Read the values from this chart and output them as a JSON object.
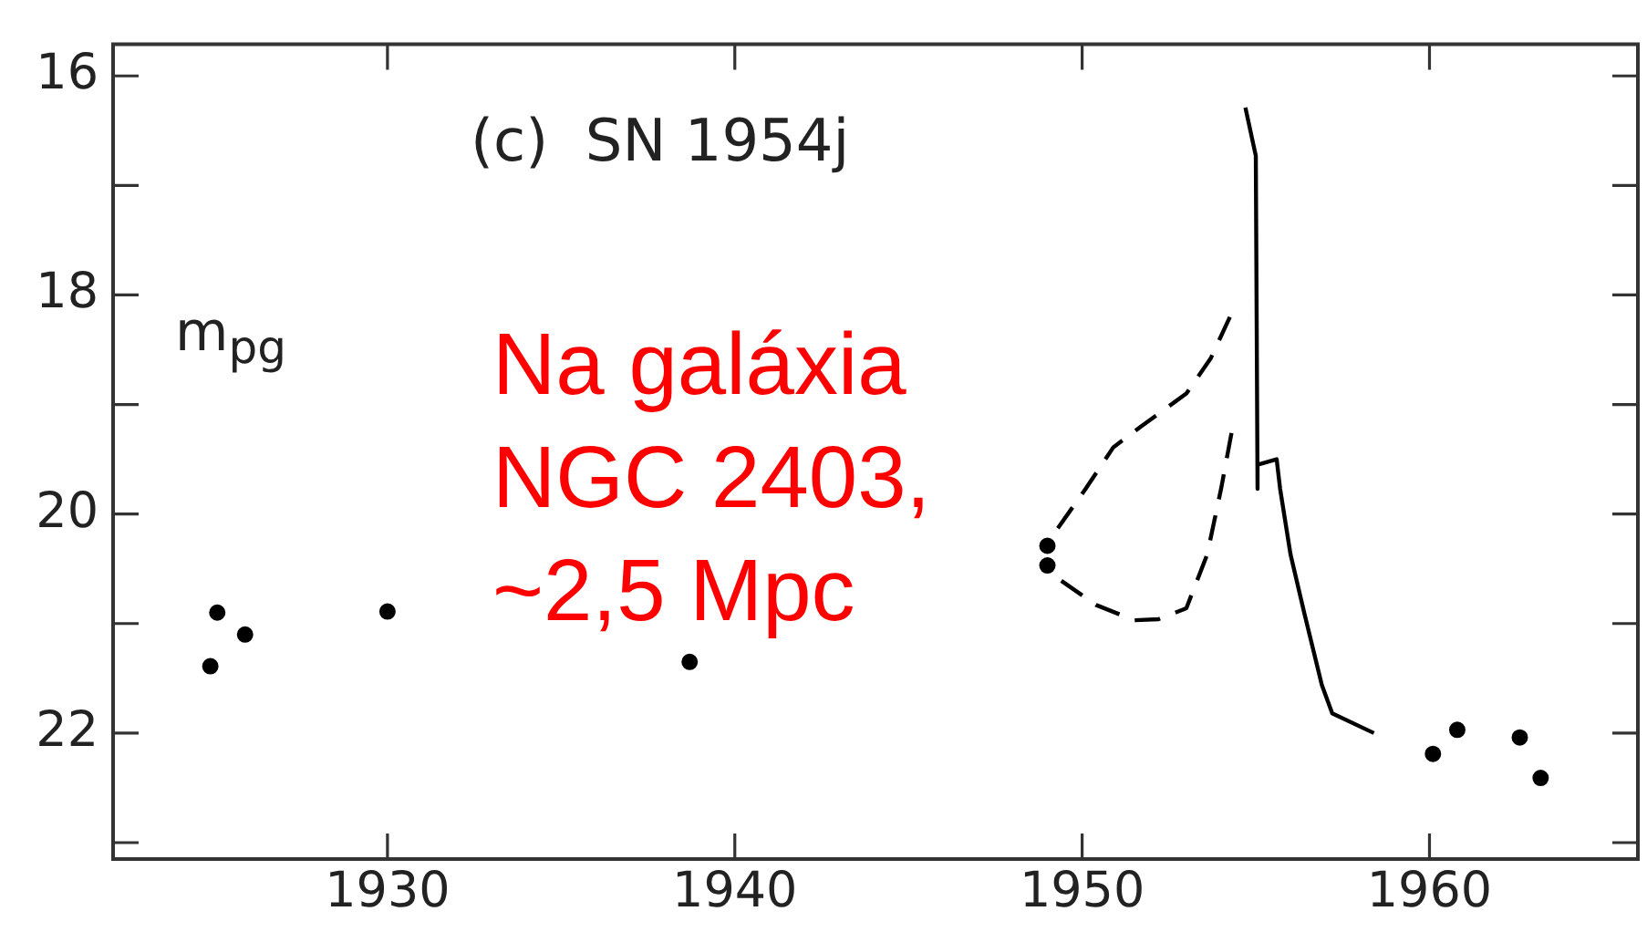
{
  "chart_data": {
    "type": "scatter",
    "title": "(c)  SN 1954j",
    "ylabel": "m$_{pg}$",
    "annotations": [
      "Na galáxia\nNGC 2403,\n~2,5 Mpc"
    ],
    "xlim": [
      1922.1,
      1966.0
    ],
    "xticks": [
      1930,
      1940,
      1950,
      1960
    ],
    "ylim": [
      23.15,
      15.71
    ],
    "yticks": [
      16,
      {
        "value": 17,
        "label": null
      },
      18,
      {
        "value": 19,
        "label": null
      },
      20,
      {
        "value": 21,
        "label": null
      },
      22,
      {
        "value": 23,
        "label": null
      }
    ],
    "grid": false,
    "legend": false,
    "series": [
      {
        "type": "scatter",
        "color": "#000000",
        "marker": "circle",
        "x": [
          1924.9,
          1925.1,
          1925.9,
          1930.0,
          1938.7,
          1949.0,
          1949.0,
          1960.1,
          1960.8,
          1962.6,
          1963.2
        ],
        "values": [
          21.39,
          20.9,
          21.1,
          20.89,
          21.35,
          20.29,
          20.47,
          22.19,
          21.97,
          22.04,
          22.41
        ]
      },
      {
        "type": "line",
        "color": "#000000",
        "marker": "none",
        "line_style": "solid",
        "x": [
          1954.7,
          1955.0,
          1955.05,
          1955.05,
          1955.6,
          1955.7,
          1956.0,
          1956.4,
          1956.9,
          1957.2,
          1958.4
        ],
        "values": [
          16.29,
          16.73,
          19.77,
          19.55,
          19.5,
          19.77,
          20.37,
          20.91,
          21.56,
          21.82,
          22.0
        ]
      },
      {
        "type": "line",
        "color": "#000000",
        "marker": "none",
        "line_style": "dashed",
        "x": [
          1949.3,
          1950.1,
          1950.9,
          1951.7,
          1953.0,
          1953.7,
          1954.3
        ],
        "values": [
          20.13,
          19.77,
          19.39,
          19.2,
          18.9,
          18.58,
          18.17
        ]
      },
      {
        "type": "line",
        "color": "#000000",
        "marker": "none",
        "line_style": "dashed",
        "x": [
          1949.4,
          1950.4,
          1951.5,
          1952.2,
          1953.0,
          1953.6,
          1954.0,
          1954.3
        ],
        "values": [
          20.61,
          20.83,
          20.97,
          20.96,
          20.86,
          20.37,
          19.77,
          19.26
        ]
      }
    ]
  }
}
